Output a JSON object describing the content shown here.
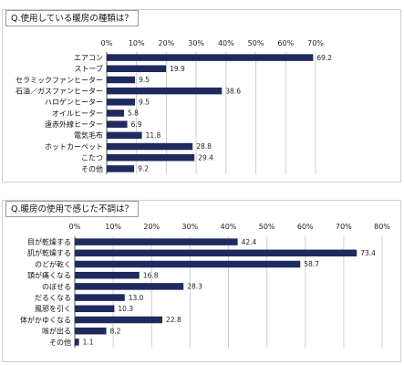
{
  "bar_color": "#1f2a5e",
  "chart_data": [
    {
      "type": "bar",
      "orientation": "horizontal",
      "title": "Q.使用している暖房の種類は？",
      "categories": [
        "エアコン",
        "ストーブ",
        "セラミックファンヒーター",
        "石油／ガスファンヒーター",
        "ハロゲンヒーター",
        "オイルヒーター",
        "遠赤外線ヒーター",
        "電気毛布",
        "ホットカーペット",
        "こたつ",
        "その他"
      ],
      "values": [
        69.2,
        19.9,
        9.5,
        38.6,
        9.5,
        5.8,
        6.9,
        11.8,
        28.8,
        29.4,
        9.2
      ],
      "value_labels": [
        "69.2",
        "19.9",
        "9.5",
        "38.6",
        "9.5",
        "5.8",
        "6.9",
        "11.8",
        "28.8",
        "29.4",
        "9.2"
      ],
      "xlim": [
        0,
        70
      ],
      "ticks": [
        "0%",
        "10%",
        "20%",
        "30%",
        "40%",
        "50%",
        "60%",
        "70%"
      ],
      "grid": true,
      "xlabel": "",
      "ylabel": ""
    },
    {
      "type": "bar",
      "orientation": "horizontal",
      "title": "Q.暖房の使用で感じた不調は？",
      "categories": [
        "目が乾燥する",
        "肌が乾燥する",
        "のどが乾く",
        "頭が痛くなる",
        "のぼせる",
        "だるくなる",
        "風邪を引く",
        "体がかゆくなる",
        "咳が出る",
        "その他"
      ],
      "values": [
        42.4,
        73.4,
        58.7,
        16.8,
        28.3,
        13.0,
        10.3,
        22.8,
        8.2,
        1.1
      ],
      "value_labels": [
        "42.4",
        "73.4",
        "58.7",
        "16.8",
        "28.3",
        "13.0",
        "10.3",
        "22.8",
        "8.2",
        "1.1"
      ],
      "xlim": [
        0,
        80
      ],
      "ticks": [
        "0%",
        "10%",
        "20%",
        "30%",
        "40%",
        "50%",
        "60%",
        "70%",
        "80%"
      ],
      "grid": true,
      "xlabel": "",
      "ylabel": ""
    }
  ]
}
